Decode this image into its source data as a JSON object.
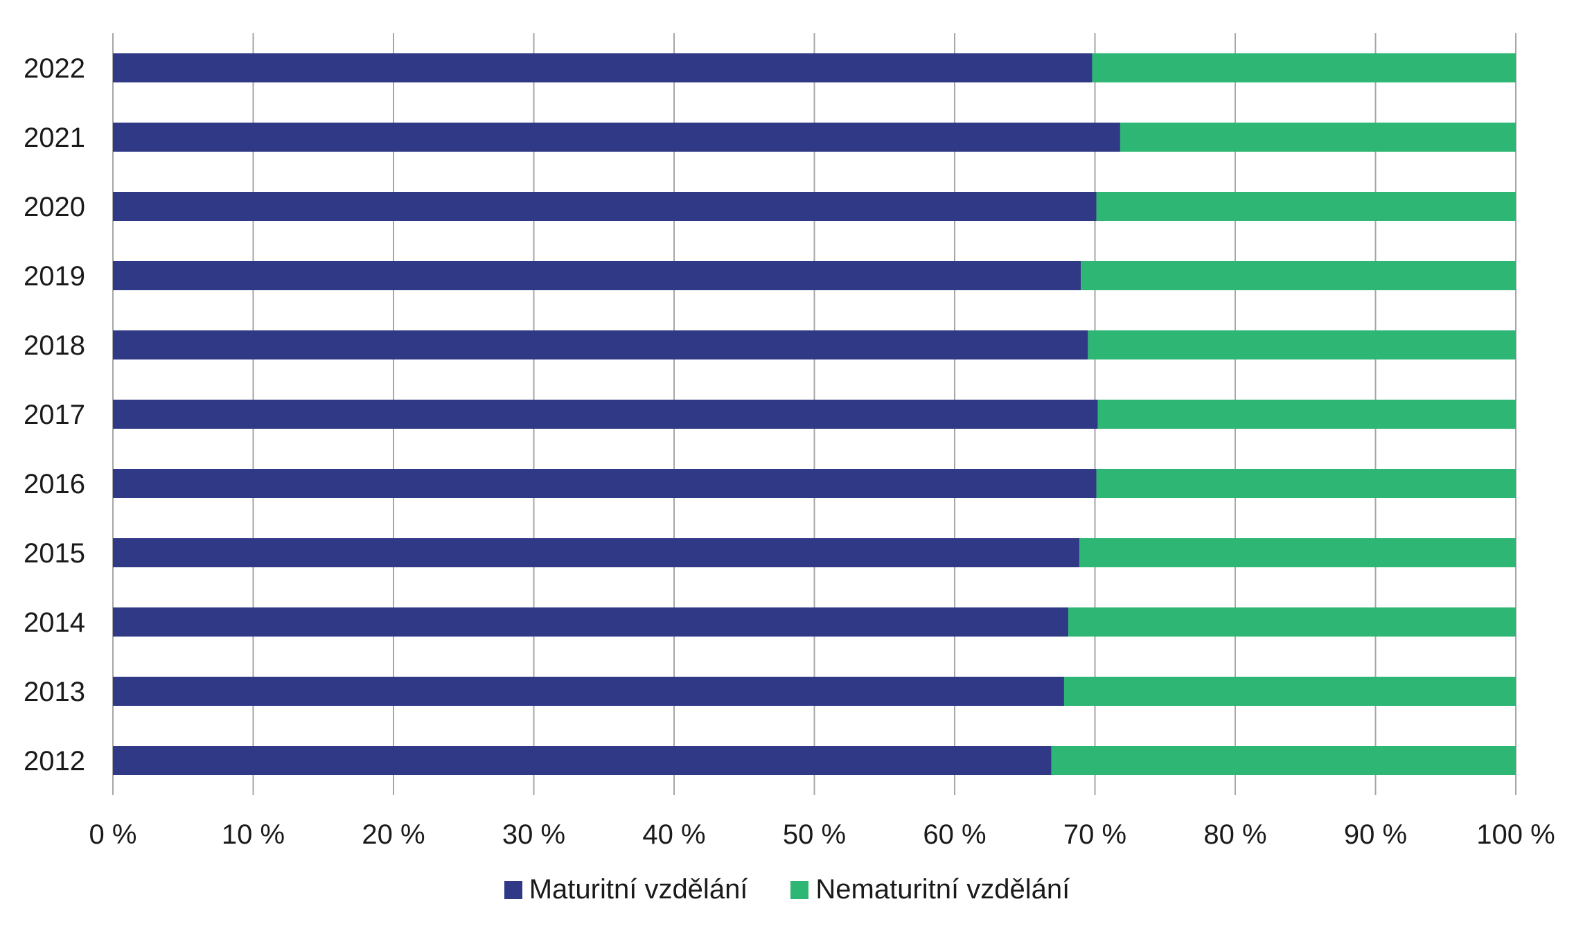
{
  "chart_data": {
    "type": "bar",
    "orientation": "horizontal",
    "stacked": "percent",
    "categories": [
      "2022",
      "2021",
      "2020",
      "2019",
      "2018",
      "2017",
      "2016",
      "2015",
      "2014",
      "2013",
      "2012"
    ],
    "series": [
      {
        "name": "Maturitní vzdělání",
        "color": "#303986",
        "values": [
          69.8,
          71.8,
          70.1,
          69.0,
          69.5,
          70.2,
          70.1,
          68.9,
          68.1,
          67.8,
          66.9
        ]
      },
      {
        "name": "Nematuritní vzdělání",
        "color": "#2db674",
        "values": [
          30.2,
          28.2,
          29.9,
          31.0,
          30.5,
          29.8,
          29.9,
          31.1,
          31.9,
          32.2,
          33.1
        ]
      }
    ],
    "xlim": [
      0,
      100
    ],
    "xticks": [
      "0 %",
      "10 %",
      "20 %",
      "30 %",
      "40 %",
      "50 %",
      "60 %",
      "70 %",
      "80 %",
      "90 %",
      "100 %"
    ],
    "grid": "vertical",
    "legend_position": "bottom",
    "title": "",
    "xlabel": "",
    "ylabel": ""
  }
}
